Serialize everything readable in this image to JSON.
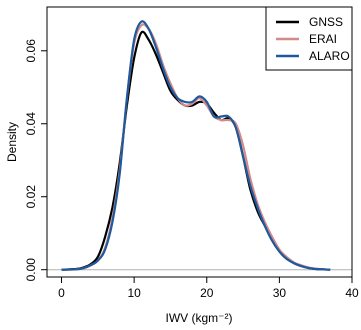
{
  "chart_data": {
    "type": "line",
    "title": "",
    "xlabel": "IWV (kgm⁻²)",
    "ylabel": "Density",
    "xlim": [
      -2,
      40
    ],
    "ylim": [
      -0.002,
      0.072
    ],
    "xticks": [
      0,
      10,
      20,
      30,
      40
    ],
    "yticks": [
      0.0,
      0.02,
      0.04,
      0.06
    ],
    "ytick_labels": [
      "0.00",
      "0.02",
      "0.04",
      "0.06"
    ],
    "grid": false,
    "baseline": 0,
    "legend_position": "top-right",
    "series": [
      {
        "name": "GNSS",
        "color": "#000000",
        "x": [
          0,
          2,
          3,
          4,
          5,
          6,
          7,
          8,
          9,
          10,
          11,
          12,
          13,
          14,
          15,
          16,
          17,
          18,
          19,
          20,
          21,
          22,
          23,
          24,
          25,
          26,
          27,
          28,
          29,
          30,
          31,
          32,
          33,
          34,
          35,
          36,
          37
        ],
        "y": [
          0.0,
          0.0002,
          0.0006,
          0.0015,
          0.0035,
          0.009,
          0.017,
          0.029,
          0.045,
          0.058,
          0.065,
          0.063,
          0.059,
          0.054,
          0.049,
          0.0465,
          0.045,
          0.045,
          0.046,
          0.0455,
          0.043,
          0.041,
          0.0415,
          0.039,
          0.031,
          0.022,
          0.016,
          0.012,
          0.008,
          0.005,
          0.003,
          0.0018,
          0.001,
          0.0005,
          0.0002,
          0.0001,
          0.0
        ]
      },
      {
        "name": "ERAI",
        "color": "#d48a8a",
        "x": [
          0,
          2,
          3,
          4,
          5,
          6,
          7,
          8,
          9,
          10,
          11,
          12,
          13,
          14,
          15,
          16,
          17,
          18,
          19,
          20,
          21,
          22,
          23,
          24,
          25,
          26,
          27,
          28,
          29,
          30,
          31,
          32,
          33,
          34,
          35,
          36,
          37
        ],
        "y": [
          0.0,
          0.0001,
          0.0004,
          0.0012,
          0.0025,
          0.006,
          0.014,
          0.027,
          0.047,
          0.062,
          0.067,
          0.066,
          0.062,
          0.056,
          0.051,
          0.047,
          0.045,
          0.0455,
          0.047,
          0.045,
          0.042,
          0.041,
          0.041,
          0.04,
          0.034,
          0.025,
          0.018,
          0.013,
          0.009,
          0.0055,
          0.0035,
          0.002,
          0.0012,
          0.0006,
          0.0003,
          0.0001,
          0.0
        ]
      },
      {
        "name": "ALARO",
        "color": "#1f5a9c",
        "x": [
          0,
          2,
          3,
          4,
          5,
          6,
          7,
          8,
          9,
          10,
          11,
          12,
          13,
          14,
          15,
          16,
          17,
          18,
          19,
          20,
          21,
          22,
          23,
          24,
          25,
          26,
          27,
          28,
          29,
          30,
          31,
          32,
          33,
          34,
          35,
          36,
          37
        ],
        "y": [
          0.0,
          0.0001,
          0.0004,
          0.0012,
          0.0025,
          0.0055,
          0.013,
          0.026,
          0.047,
          0.063,
          0.068,
          0.066,
          0.061,
          0.055,
          0.05,
          0.047,
          0.046,
          0.046,
          0.0475,
          0.046,
          0.042,
          0.042,
          0.042,
          0.039,
          0.031,
          0.023,
          0.017,
          0.012,
          0.008,
          0.005,
          0.003,
          0.0018,
          0.001,
          0.0005,
          0.0002,
          0.0001,
          0.0
        ]
      }
    ]
  }
}
